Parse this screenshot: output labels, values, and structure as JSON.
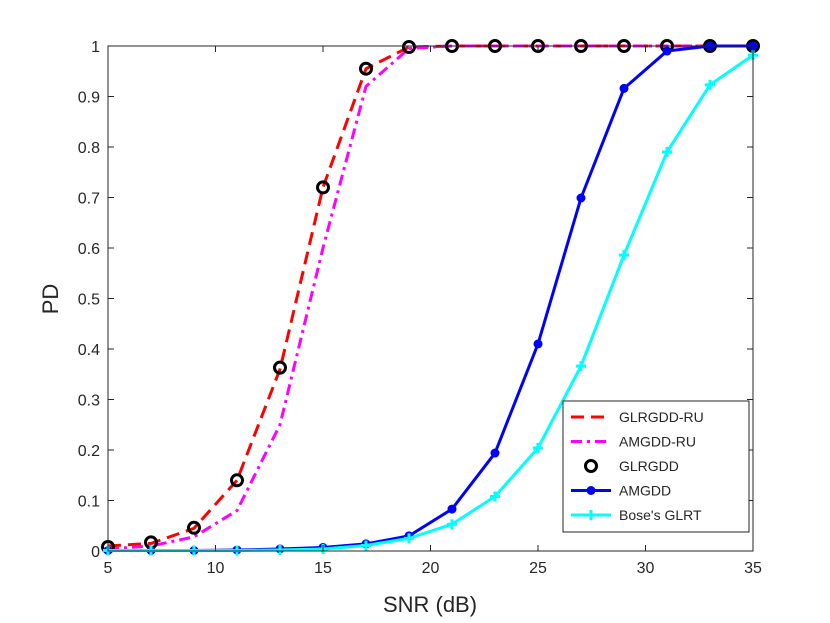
{
  "chart_data": {
    "type": "line",
    "title": "",
    "xlabel": "SNR (dB)",
    "ylabel": "PD",
    "xlim": [
      5,
      35
    ],
    "ylim": [
      0,
      1
    ],
    "grid": false,
    "legend_position": "bottom-right",
    "x": [
      5,
      7,
      9,
      11,
      13,
      15,
      17,
      19,
      21,
      23,
      25,
      27,
      29,
      31,
      33,
      35
    ],
    "x_ticks": [
      "5",
      "10",
      "15",
      "20",
      "25",
      "30",
      "35"
    ],
    "y_ticks": [
      "0",
      "0.1",
      "0.2",
      "0.3",
      "0.4",
      "0.5",
      "0.6",
      "0.7",
      "0.8",
      "0.9",
      "1"
    ],
    "series": [
      {
        "name": "GLRGDD-RU",
        "color": "#ff0000",
        "style": "dashed",
        "marker": "none",
        "values": [
          0.01,
          0.015,
          0.045,
          0.14,
          0.36,
          0.72,
          0.955,
          0.998,
          1,
          1,
          1,
          1,
          1,
          1,
          1,
          1
        ]
      },
      {
        "name": "AMGDD-RU",
        "color": "#ff00ff",
        "style": "dashdot",
        "marker": "none",
        "values": [
          0.004,
          0.01,
          0.028,
          0.08,
          0.25,
          0.6,
          0.92,
          0.995,
          1,
          1,
          1,
          1,
          1,
          1,
          1,
          1
        ]
      },
      {
        "name": "GLRGDD",
        "color": "#000000",
        "style": "none",
        "marker": "circle",
        "values": [
          0.008,
          0.017,
          0.046,
          0.14,
          0.363,
          0.72,
          0.955,
          0.998,
          1,
          1,
          1,
          1,
          1,
          1,
          1,
          1
        ]
      },
      {
        "name": "AMGDD",
        "color": "#0000ff",
        "style": "solid",
        "marker": "dot",
        "values": [
          0.001,
          0.001,
          0.001,
          0.002,
          0.004,
          0.007,
          0.014,
          0.03,
          0.083,
          0.194,
          0.41,
          0.699,
          0.916,
          0.99,
          1,
          1
        ]
      },
      {
        "name": "Bose's GLRT",
        "color": "#00ffff",
        "style": "solid",
        "marker": "plus",
        "values": [
          0.001,
          0.001,
          0.001,
          0.001,
          0.002,
          0.004,
          0.011,
          0.025,
          0.053,
          0.108,
          0.204,
          0.366,
          0.586,
          0.79,
          0.923,
          0.982
        ]
      }
    ]
  }
}
